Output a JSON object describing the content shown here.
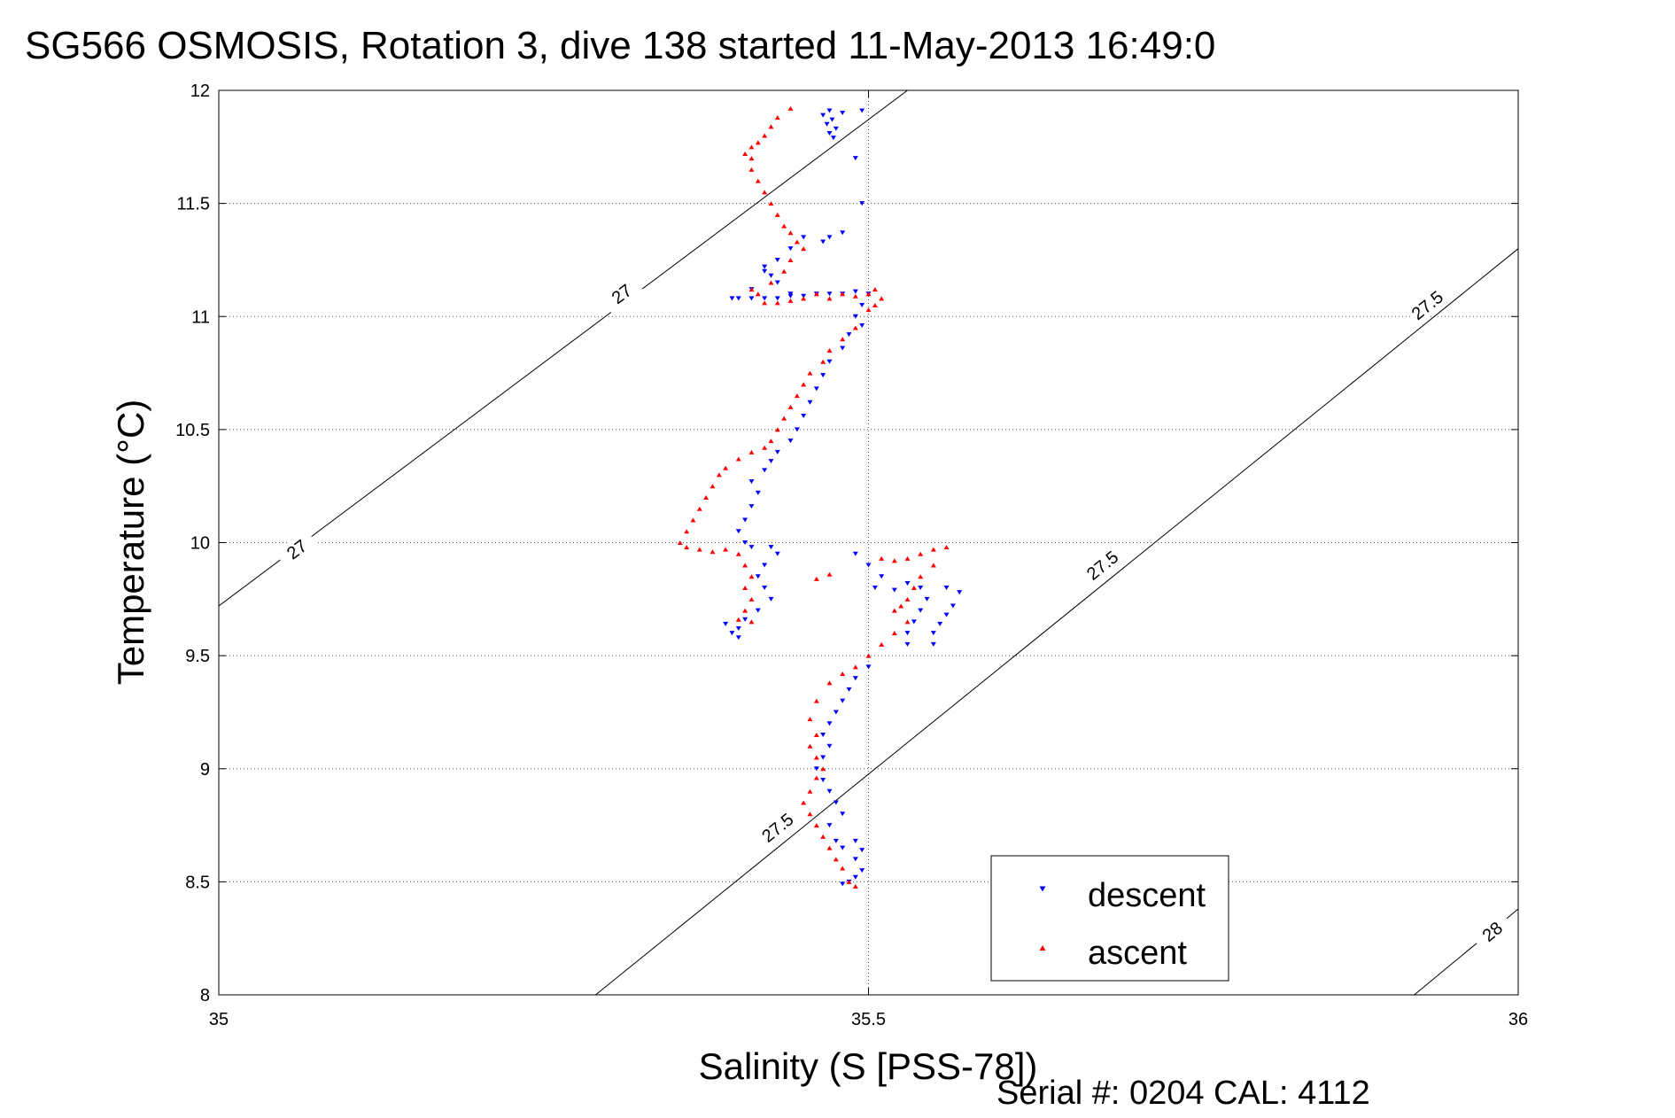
{
  "figure": {
    "title": "SG566 OSMOSIS, Rotation 3, dive 138 started 11-May-2013 16:49:0",
    "footer": "Serial #: 0204  CAL: 4112"
  },
  "chart_data": {
    "type": "scatter",
    "title": "SG566 OSMOSIS, Rotation 3, dive 138 started 11-May-2013 16:49:0",
    "xlabel": "Salinity (S [PSS-78])",
    "ylabel": "Temperature (°C)",
    "xlim": [
      35,
      36
    ],
    "ylim": [
      8,
      12
    ],
    "xticks": [
      "35",
      "35.5",
      "36"
    ],
    "yticks": [
      "8",
      "8.5",
      "9",
      "9.5",
      "10",
      "10.5",
      "11",
      "11.5",
      "12"
    ],
    "grid": true,
    "legend_position": "bottom-right",
    "isopycnals": [
      {
        "label": "27",
        "points": [
          [
            35.0,
            9.72
          ],
          [
            35.53,
            12.0
          ]
        ],
        "label_positions": [
          [
            35.06,
            9.97
          ],
          [
            35.31,
            11.1
          ]
        ]
      },
      {
        "label": "27.5",
        "points": [
          [
            35.29,
            8.0
          ],
          [
            36.0,
            11.3
          ]
        ],
        "label_positions": [
          [
            35.43,
            8.74
          ],
          [
            35.68,
            9.9
          ],
          [
            35.93,
            11.05
          ]
        ]
      },
      {
        "label": "28",
        "points": [
          [
            35.92,
            8.0
          ],
          [
            36.0,
            8.38
          ]
        ],
        "label_positions": [
          [
            35.98,
            8.28
          ]
        ]
      }
    ],
    "series": [
      {
        "name": "descent",
        "color": "#0000ff",
        "marker": "triangle-down",
        "points": [
          [
            35.47,
            11.91
          ],
          [
            35.465,
            11.89
          ],
          [
            35.472,
            11.87
          ],
          [
            35.468,
            11.85
          ],
          [
            35.475,
            11.83
          ],
          [
            35.47,
            11.81
          ],
          [
            35.473,
            11.79
          ],
          [
            35.48,
            11.9
          ],
          [
            35.495,
            11.91
          ],
          [
            35.49,
            11.7
          ],
          [
            35.495,
            11.5
          ],
          [
            35.48,
            11.37
          ],
          [
            35.47,
            11.35
          ],
          [
            35.465,
            11.33
          ],
          [
            35.45,
            11.35
          ],
          [
            35.44,
            11.3
          ],
          [
            35.43,
            11.25
          ],
          [
            35.42,
            11.2
          ],
          [
            35.43,
            11.15
          ],
          [
            35.44,
            11.1
          ],
          [
            35.41,
            11.12
          ],
          [
            35.42,
            11.22
          ],
          [
            35.425,
            11.18
          ],
          [
            35.395,
            11.08
          ],
          [
            35.4,
            11.08
          ],
          [
            35.41,
            11.08
          ],
          [
            35.42,
            11.08
          ],
          [
            35.43,
            11.08
          ],
          [
            35.44,
            11.09
          ],
          [
            35.45,
            11.09
          ],
          [
            35.46,
            11.1
          ],
          [
            35.47,
            11.1
          ],
          [
            35.48,
            11.1
          ],
          [
            35.49,
            11.11
          ],
          [
            35.5,
            11.1
          ],
          [
            35.495,
            11.05
          ],
          [
            35.49,
            11.0
          ],
          [
            35.495,
            10.96
          ],
          [
            35.485,
            10.92
          ],
          [
            35.48,
            10.86
          ],
          [
            35.47,
            10.8
          ],
          [
            35.465,
            10.74
          ],
          [
            35.46,
            10.68
          ],
          [
            35.455,
            10.62
          ],
          [
            35.45,
            10.56
          ],
          [
            35.445,
            10.5
          ],
          [
            35.44,
            10.45
          ],
          [
            35.43,
            10.4
          ],
          [
            35.425,
            10.36
          ],
          [
            35.42,
            10.32
          ],
          [
            35.41,
            10.27
          ],
          [
            35.415,
            10.22
          ],
          [
            35.41,
            10.16
          ],
          [
            35.405,
            10.1
          ],
          [
            35.4,
            10.05
          ],
          [
            35.405,
            10.0
          ],
          [
            35.41,
            9.98
          ],
          [
            35.425,
            9.98
          ],
          [
            35.43,
            9.95
          ],
          [
            35.42,
            9.9
          ],
          [
            35.415,
            9.85
          ],
          [
            35.42,
            9.8
          ],
          [
            35.425,
            9.75
          ],
          [
            35.415,
            9.7
          ],
          [
            35.405,
            9.66
          ],
          [
            35.4,
            9.62
          ],
          [
            35.395,
            9.6
          ],
          [
            35.4,
            9.58
          ],
          [
            35.39,
            9.64
          ],
          [
            35.49,
            9.95
          ],
          [
            35.5,
            9.9
          ],
          [
            35.51,
            9.85
          ],
          [
            35.505,
            9.8
          ],
          [
            35.52,
            9.79
          ],
          [
            35.53,
            9.82
          ],
          [
            35.54,
            9.8
          ],
          [
            35.545,
            9.75
          ],
          [
            35.54,
            9.7
          ],
          [
            35.535,
            9.65
          ],
          [
            35.53,
            9.6
          ],
          [
            35.53,
            9.55
          ],
          [
            35.56,
            9.8
          ],
          [
            35.57,
            9.78
          ],
          [
            35.565,
            9.72
          ],
          [
            35.56,
            9.68
          ],
          [
            35.555,
            9.64
          ],
          [
            35.55,
            9.6
          ],
          [
            35.55,
            9.55
          ],
          [
            35.5,
            9.45
          ],
          [
            35.49,
            9.4
          ],
          [
            35.485,
            9.35
          ],
          [
            35.48,
            9.3
          ],
          [
            35.475,
            9.25
          ],
          [
            35.47,
            9.2
          ],
          [
            35.465,
            9.15
          ],
          [
            35.47,
            9.1
          ],
          [
            35.465,
            9.05
          ],
          [
            35.46,
            9.0
          ],
          [
            35.465,
            8.95
          ],
          [
            35.47,
            8.9
          ],
          [
            35.475,
            8.85
          ],
          [
            35.48,
            8.8
          ],
          [
            35.47,
            8.75
          ],
          [
            35.475,
            8.68
          ],
          [
            35.48,
            8.65
          ],
          [
            35.49,
            8.68
          ],
          [
            35.495,
            8.64
          ],
          [
            35.49,
            8.6
          ],
          [
            35.495,
            8.55
          ],
          [
            35.49,
            8.52
          ],
          [
            35.485,
            8.5
          ],
          [
            35.48,
            8.49
          ]
        ]
      },
      {
        "name": "ascent",
        "color": "#ff0000",
        "marker": "triangle-up",
        "points": [
          [
            35.44,
            11.92
          ],
          [
            35.43,
            11.88
          ],
          [
            35.425,
            11.84
          ],
          [
            35.42,
            11.8
          ],
          [
            35.415,
            11.77
          ],
          [
            35.41,
            11.75
          ],
          [
            35.405,
            11.72
          ],
          [
            35.41,
            11.7
          ],
          [
            35.41,
            11.65
          ],
          [
            35.415,
            11.6
          ],
          [
            35.42,
            11.55
          ],
          [
            35.425,
            11.5
          ],
          [
            35.43,
            11.45
          ],
          [
            35.435,
            11.4
          ],
          [
            35.44,
            11.37
          ],
          [
            35.445,
            11.33
          ],
          [
            35.45,
            11.3
          ],
          [
            35.44,
            11.25
          ],
          [
            35.435,
            11.2
          ],
          [
            35.425,
            11.15
          ],
          [
            35.415,
            11.1
          ],
          [
            35.41,
            11.12
          ],
          [
            35.42,
            11.06
          ],
          [
            35.43,
            11.06
          ],
          [
            35.44,
            11.07
          ],
          [
            35.45,
            11.08
          ],
          [
            35.46,
            11.1
          ],
          [
            35.47,
            11.08
          ],
          [
            35.48,
            11.1
          ],
          [
            35.49,
            11.09
          ],
          [
            35.5,
            11.1
          ],
          [
            35.505,
            11.12
          ],
          [
            35.51,
            11.08
          ],
          [
            35.505,
            11.05
          ],
          [
            35.5,
            11.03
          ],
          [
            35.49,
            10.95
          ],
          [
            35.48,
            10.9
          ],
          [
            35.47,
            10.85
          ],
          [
            35.465,
            10.8
          ],
          [
            35.455,
            10.75
          ],
          [
            35.45,
            10.7
          ],
          [
            35.445,
            10.65
          ],
          [
            35.44,
            10.6
          ],
          [
            35.435,
            10.55
          ],
          [
            35.43,
            10.5
          ],
          [
            35.425,
            10.45
          ],
          [
            35.42,
            10.42
          ],
          [
            35.41,
            10.4
          ],
          [
            35.4,
            10.37
          ],
          [
            35.39,
            10.33
          ],
          [
            35.385,
            10.3
          ],
          [
            35.38,
            10.25
          ],
          [
            35.375,
            10.2
          ],
          [
            35.37,
            10.15
          ],
          [
            35.365,
            10.1
          ],
          [
            35.36,
            10.05
          ],
          [
            35.355,
            10.0
          ],
          [
            35.36,
            9.98
          ],
          [
            35.37,
            9.97
          ],
          [
            35.38,
            9.96
          ],
          [
            35.39,
            9.97
          ],
          [
            35.4,
            9.95
          ],
          [
            35.405,
            9.9
          ],
          [
            35.41,
            9.85
          ],
          [
            35.405,
            9.8
          ],
          [
            35.41,
            9.75
          ],
          [
            35.405,
            9.7
          ],
          [
            35.4,
            9.66
          ],
          [
            35.41,
            9.65
          ],
          [
            35.46,
            9.84
          ],
          [
            35.47,
            9.86
          ],
          [
            35.51,
            9.93
          ],
          [
            35.52,
            9.92
          ],
          [
            35.53,
            9.93
          ],
          [
            35.54,
            9.95
          ],
          [
            35.55,
            9.97
          ],
          [
            35.56,
            9.98
          ],
          [
            35.55,
            9.9
          ],
          [
            35.54,
            9.85
          ],
          [
            35.535,
            9.8
          ],
          [
            35.53,
            9.75
          ],
          [
            35.525,
            9.72
          ],
          [
            35.52,
            9.7
          ],
          [
            35.53,
            9.65
          ],
          [
            35.52,
            9.6
          ],
          [
            35.51,
            9.55
          ],
          [
            35.5,
            9.5
          ],
          [
            35.49,
            9.45
          ],
          [
            35.48,
            9.42
          ],
          [
            35.47,
            9.38
          ],
          [
            35.46,
            9.3
          ],
          [
            35.455,
            9.22
          ],
          [
            35.46,
            9.15
          ],
          [
            35.455,
            9.1
          ],
          [
            35.46,
            9.05
          ],
          [
            35.465,
            9.0
          ],
          [
            35.46,
            8.96
          ],
          [
            35.455,
            8.9
          ],
          [
            35.45,
            8.85
          ],
          [
            35.455,
            8.8
          ],
          [
            35.46,
            8.75
          ],
          [
            35.465,
            8.7
          ],
          [
            35.47,
            8.65
          ],
          [
            35.475,
            8.6
          ],
          [
            35.48,
            8.56
          ],
          [
            35.485,
            8.5
          ],
          [
            35.49,
            8.48
          ]
        ]
      }
    ]
  }
}
